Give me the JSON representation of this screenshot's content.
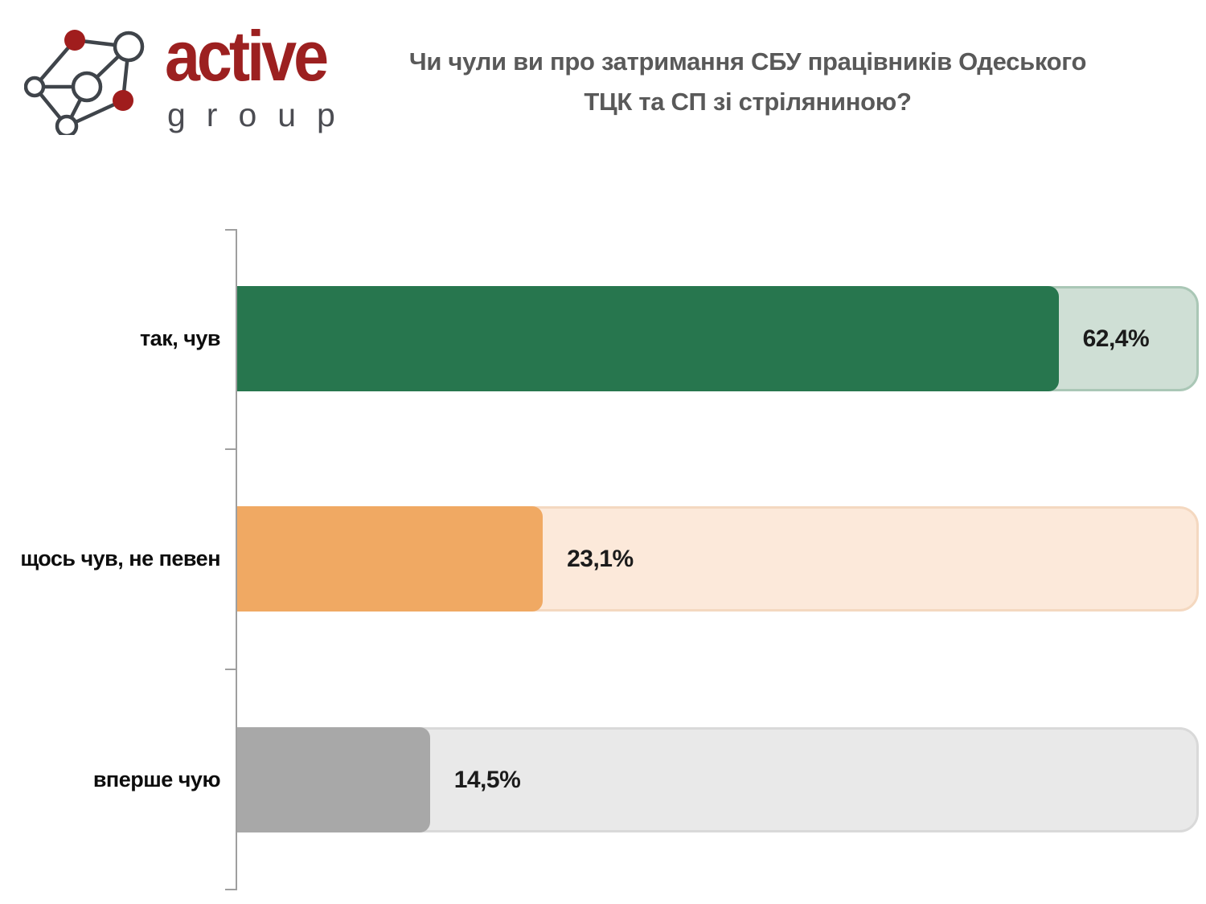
{
  "logo": {
    "brand_primary": "active",
    "brand_secondary": "group",
    "accent_color": "#9c2020",
    "secondary_color": "#4b4c52",
    "node_outline_color": "#3f444a",
    "node_fill_color": "#a01d1d"
  },
  "title": {
    "lines": [
      "Чи чули ви про затримання СБУ працівників Одеського",
      "ТЦК та СП зі стріляниною?"
    ]
  },
  "chart_data": {
    "type": "bar",
    "orientation": "horizontal",
    "title": "Чи чули ви про затримання СБУ працівників Одеського ТЦК та СП зі стріляниною?",
    "categories": [
      "так, чув",
      "щось чув, не певен",
      "вперше чую"
    ],
    "values": [
      62.4,
      23.1,
      14.5
    ],
    "value_labels": [
      "62,4%",
      "23,1%",
      "14,5%"
    ],
    "xlabel": "",
    "ylabel": "",
    "xlim": [
      0,
      72.9
    ],
    "grid": false,
    "legend": "none",
    "bar_fill_colors": [
      "#27764e",
      "#f0a963",
      "#a8a8a8"
    ],
    "bar_track_colors": [
      "#cfdfd5",
      "#fce9da",
      "#e9e9e9"
    ],
    "bar_track_border_colors": [
      "#aac7b6",
      "#f4d8c0",
      "#d9d9d9"
    ],
    "axis_color": "#9f9f9f"
  }
}
